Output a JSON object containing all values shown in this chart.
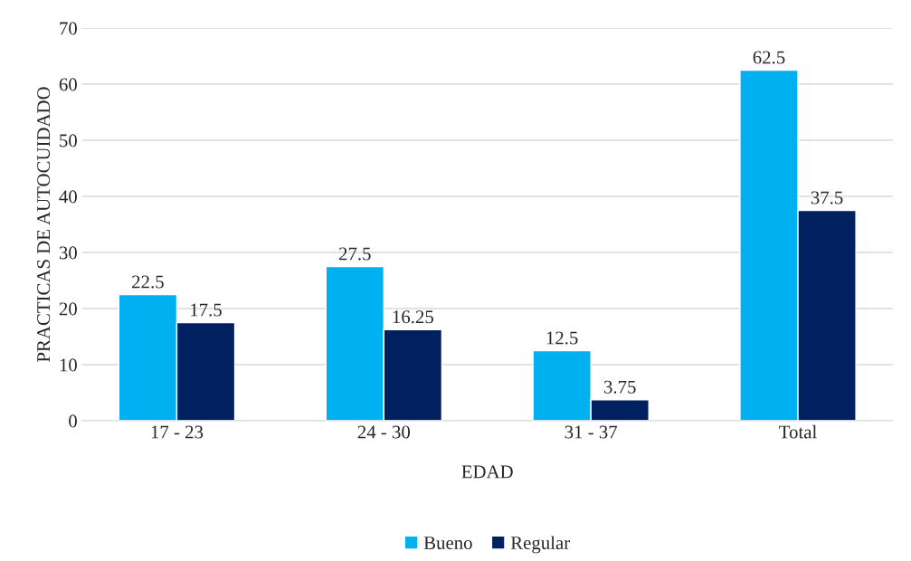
{
  "chart_data": {
    "type": "bar",
    "xlabel": "EDAD",
    "ylabel": "PRACTICAS DE AUTOCUIDADO",
    "categories": [
      "17 - 23",
      "24 - 30",
      "31 - 37",
      "Total"
    ],
    "series": [
      {
        "name": "Bueno",
        "color": "#00b0f0",
        "values": [
          22.5,
          27.5,
          12.5,
          62.5
        ]
      },
      {
        "name": "Regular",
        "color": "#002060",
        "values": [
          17.5,
          16.25,
          3.75,
          37.5
        ]
      }
    ],
    "ylim": [
      0,
      70
    ],
    "yticks": [
      0,
      10,
      20,
      30,
      40,
      50,
      60,
      70
    ],
    "grid": "y",
    "legend": "bottom",
    "data_labels": true
  }
}
